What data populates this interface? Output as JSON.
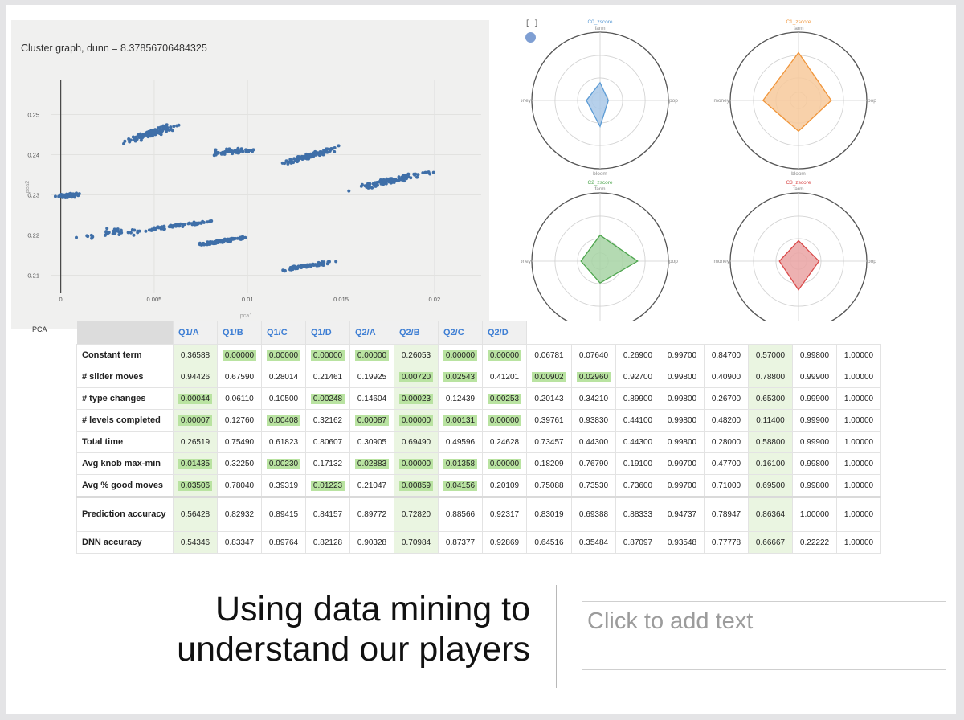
{
  "scatter": {
    "title": "Cluster graph, dunn = 8.37856706484325",
    "xlabel": "pca1",
    "ylabel": "pca2",
    "x_ticks": [
      "0",
      "0.005",
      "0.01",
      "0.015",
      "0.02"
    ],
    "y_ticks": [
      "0.25",
      "0.24",
      "0.23",
      "0.22",
      "0.21"
    ],
    "legend_stub": "PCA",
    "point_color": "#3f6fa8"
  },
  "chart_data": {
    "type": "scatter",
    "title": "Cluster graph, dunn = 8.37856706484325",
    "xlabel": "pca1",
    "ylabel": "pca2",
    "xlim": [
      -0.0005,
      0.0225
    ],
    "ylim": [
      0.2055,
      0.2585
    ],
    "grid": true,
    "clusters": [
      {
        "center": [
          0.0004,
          0.2298
        ],
        "spread": [
          0.0005,
          0.0012
        ],
        "slope": 0.9,
        "n": 90
      },
      {
        "center": [
          0.005,
          0.2455
        ],
        "spread": [
          0.0012,
          0.0022
        ],
        "slope": 2.4,
        "n": 110
      },
      {
        "center": [
          0.0092,
          0.2408
        ],
        "spread": [
          0.0012,
          0.0018
        ],
        "slope": 0.8,
        "n": 50
      },
      {
        "center": [
          0.0132,
          0.2395
        ],
        "spread": [
          0.0013,
          0.0018
        ],
        "slope": 2.2,
        "n": 110
      },
      {
        "center": [
          0.0176,
          0.2335
        ],
        "spread": [
          0.0018,
          0.002
        ],
        "slope": 1.6,
        "n": 100
      },
      {
        "center": [
          0.0062,
          0.2223
        ],
        "spread": [
          0.0016,
          0.0012
        ],
        "slope": 1.1,
        "n": 70
      },
      {
        "center": [
          0.0087,
          0.2185
        ],
        "spread": [
          0.0012,
          0.0012
        ],
        "slope": 1.2,
        "n": 100
      },
      {
        "center": [
          0.0131,
          0.2123
        ],
        "spread": [
          0.0012,
          0.0012
        ],
        "slope": 1.2,
        "n": 80
      },
      {
        "center": [
          0.0023,
          0.2202
        ],
        "spread": [
          0.0025,
          0.0025
        ],
        "slope": 1.0,
        "n": 30
      }
    ]
  },
  "radar": {
    "bracket": "[ ]",
    "axes": [
      "farm",
      "pop",
      "bloom",
      "money"
    ],
    "charts": [
      {
        "title": "C0_zscore",
        "color": "#5b9bd5",
        "fill": "#a9c8e8",
        "values": [
          0.26,
          0.12,
          0.38,
          0.2
        ]
      },
      {
        "title": "C1_zscore",
        "color": "#f0953a",
        "fill": "#f7c99b",
        "values": [
          0.7,
          0.48,
          0.45,
          0.52
        ]
      },
      {
        "title": "C2_zscore",
        "color": "#4ea64e",
        "fill": "#a7d3a4",
        "values": [
          0.38,
          0.55,
          0.32,
          0.28
        ]
      },
      {
        "title": "C3_zscore",
        "color": "#d94a4a",
        "fill": "#eaa3a3",
        "values": [
          0.3,
          0.3,
          0.42,
          0.28
        ]
      }
    ]
  },
  "table": {
    "headers": [
      "",
      "Q1/A",
      "Q1/B",
      "Q1/C",
      "Q1/D",
      "Q2/A",
      "Q2/B",
      "Q2/C",
      "Q2/D",
      "",
      "",
      "",
      "",
      "",
      "",
      "",
      ""
    ],
    "rows": [
      {
        "label": "Constant term",
        "cells": [
          {
            "v": "0.36588"
          },
          {
            "v": "0.00000",
            "hl": true
          },
          {
            "v": "0.00000",
            "hl": true
          },
          {
            "v": "0.00000",
            "hl": true
          },
          {
            "v": "0.00000",
            "hl": true
          },
          {
            "v": "0.26053"
          },
          {
            "v": "0.00000",
            "hl": true
          },
          {
            "v": "0.00000",
            "hl": true
          },
          {
            "v": "0.06781"
          },
          {
            "v": "0.07640"
          },
          {
            "v": "0.26900"
          },
          {
            "v": "0.99700"
          },
          {
            "v": "0.84700"
          },
          {
            "v": "0.57000"
          },
          {
            "v": "0.99800"
          },
          {
            "v": "1.00000"
          }
        ]
      },
      {
        "label": "# slider moves",
        "cells": [
          {
            "v": "0.94426"
          },
          {
            "v": "0.67590"
          },
          {
            "v": "0.28014"
          },
          {
            "v": "0.21461"
          },
          {
            "v": "0.19925"
          },
          {
            "v": "0.00720",
            "hl": true
          },
          {
            "v": "0.02543",
            "hl": true
          },
          {
            "v": "0.41201"
          },
          {
            "v": "0.00902",
            "hl": true
          },
          {
            "v": "0.02960",
            "hl": true
          },
          {
            "v": "0.92700"
          },
          {
            "v": "0.99800"
          },
          {
            "v": "0.40900"
          },
          {
            "v": "0.78800"
          },
          {
            "v": "0.99900"
          },
          {
            "v": "1.00000"
          }
        ]
      },
      {
        "label": "# type changes",
        "cells": [
          {
            "v": "0.00044",
            "hl": true
          },
          {
            "v": "0.06110"
          },
          {
            "v": "0.10500"
          },
          {
            "v": "0.00248",
            "hl": true
          },
          {
            "v": "0.14604"
          },
          {
            "v": "0.00023",
            "hl": true
          },
          {
            "v": "0.12439"
          },
          {
            "v": "0.00253",
            "hl": true
          },
          {
            "v": "0.20143"
          },
          {
            "v": "0.34210"
          },
          {
            "v": "0.89900"
          },
          {
            "v": "0.99800"
          },
          {
            "v": "0.26700"
          },
          {
            "v": "0.65300"
          },
          {
            "v": "0.99900"
          },
          {
            "v": "1.00000"
          }
        ]
      },
      {
        "label": "# levels completed",
        "cells": [
          {
            "v": "0.00007",
            "hl": true
          },
          {
            "v": "0.12760"
          },
          {
            "v": "0.00408",
            "hl": true
          },
          {
            "v": "0.32162"
          },
          {
            "v": "0.00087",
            "hl": true
          },
          {
            "v": "0.00000",
            "hl": true
          },
          {
            "v": "0.00131",
            "hl": true
          },
          {
            "v": "0.00000",
            "hl": true
          },
          {
            "v": "0.39761"
          },
          {
            "v": "0.93830"
          },
          {
            "v": "0.44100"
          },
          {
            "v": "0.99800"
          },
          {
            "v": "0.48200"
          },
          {
            "v": "0.11400"
          },
          {
            "v": "0.99900"
          },
          {
            "v": "1.00000"
          }
        ]
      },
      {
        "label": "Total time",
        "cells": [
          {
            "v": "0.26519"
          },
          {
            "v": "0.75490"
          },
          {
            "v": "0.61823"
          },
          {
            "v": "0.80607"
          },
          {
            "v": "0.30905"
          },
          {
            "v": "0.69490"
          },
          {
            "v": "0.49596"
          },
          {
            "v": "0.24628"
          },
          {
            "v": "0.73457"
          },
          {
            "v": "0.44300"
          },
          {
            "v": "0.44300"
          },
          {
            "v": "0.99800"
          },
          {
            "v": "0.28000"
          },
          {
            "v": "0.58800"
          },
          {
            "v": "0.99900"
          },
          {
            "v": "1.00000"
          }
        ]
      },
      {
        "label": "Avg knob max-min",
        "cells": [
          {
            "v": "0.01435",
            "hl": true
          },
          {
            "v": "0.32250"
          },
          {
            "v": "0.00230",
            "hl": true
          },
          {
            "v": "0.17132"
          },
          {
            "v": "0.02883",
            "hl": true
          },
          {
            "v": "0.00000",
            "hl": true
          },
          {
            "v": "0.01358",
            "hl": true
          },
          {
            "v": "0.00000",
            "hl": true
          },
          {
            "v": "0.18209"
          },
          {
            "v": "0.76790"
          },
          {
            "v": "0.19100"
          },
          {
            "v": "0.99700"
          },
          {
            "v": "0.47700"
          },
          {
            "v": "0.16100"
          },
          {
            "v": "0.99800"
          },
          {
            "v": "1.00000"
          }
        ]
      },
      {
        "label": "Avg % good moves",
        "cells": [
          {
            "v": "0.03506",
            "hl": true
          },
          {
            "v": "0.78040"
          },
          {
            "v": "0.39319"
          },
          {
            "v": "0.01223",
            "hl": true
          },
          {
            "v": "0.21047"
          },
          {
            "v": "0.00859",
            "hl": true
          },
          {
            "v": "0.04156",
            "hl": true
          },
          {
            "v": "0.20109"
          },
          {
            "v": "0.75088"
          },
          {
            "v": "0.73530"
          },
          {
            "v": "0.73600"
          },
          {
            "v": "0.99700"
          },
          {
            "v": "0.71000"
          },
          {
            "v": "0.69500"
          },
          {
            "v": "0.99800"
          },
          {
            "v": "1.00000"
          }
        ]
      },
      {
        "label": "Prediction accuracy",
        "tall": true,
        "sep": true,
        "cells": [
          {
            "v": "0.56428"
          },
          {
            "v": "0.82932"
          },
          {
            "v": "0.89415"
          },
          {
            "v": "0.84157"
          },
          {
            "v": "0.89772"
          },
          {
            "v": "0.72820"
          },
          {
            "v": "0.88566"
          },
          {
            "v": "0.92317"
          },
          {
            "v": "0.83019"
          },
          {
            "v": "0.69388"
          },
          {
            "v": "0.88333"
          },
          {
            "v": "0.94737"
          },
          {
            "v": "0.78947"
          },
          {
            "v": "0.86364"
          },
          {
            "v": "1.00000"
          },
          {
            "v": "1.00000"
          }
        ]
      },
      {
        "label": "DNN accuracy",
        "cells": [
          {
            "v": "0.54346"
          },
          {
            "v": "0.83347"
          },
          {
            "v": "0.89764"
          },
          {
            "v": "0.82128"
          },
          {
            "v": "0.90328"
          },
          {
            "v": "0.70984"
          },
          {
            "v": "0.87377"
          },
          {
            "v": "0.92869"
          },
          {
            "v": "0.64516"
          },
          {
            "v": "0.35484"
          },
          {
            "v": "0.87097"
          },
          {
            "v": "0.93548"
          },
          {
            "v": "0.77778"
          },
          {
            "v": "0.66667"
          },
          {
            "v": "0.22222"
          },
          {
            "v": "1.00000"
          }
        ]
      }
    ],
    "shaded_columns": [
      0,
      5,
      13
    ],
    "highlight_color": "#b9e3a1"
  },
  "slide": {
    "title_line1": "Using data mining to",
    "title_line2": "understand our players",
    "placeholder": "Click to add text"
  }
}
